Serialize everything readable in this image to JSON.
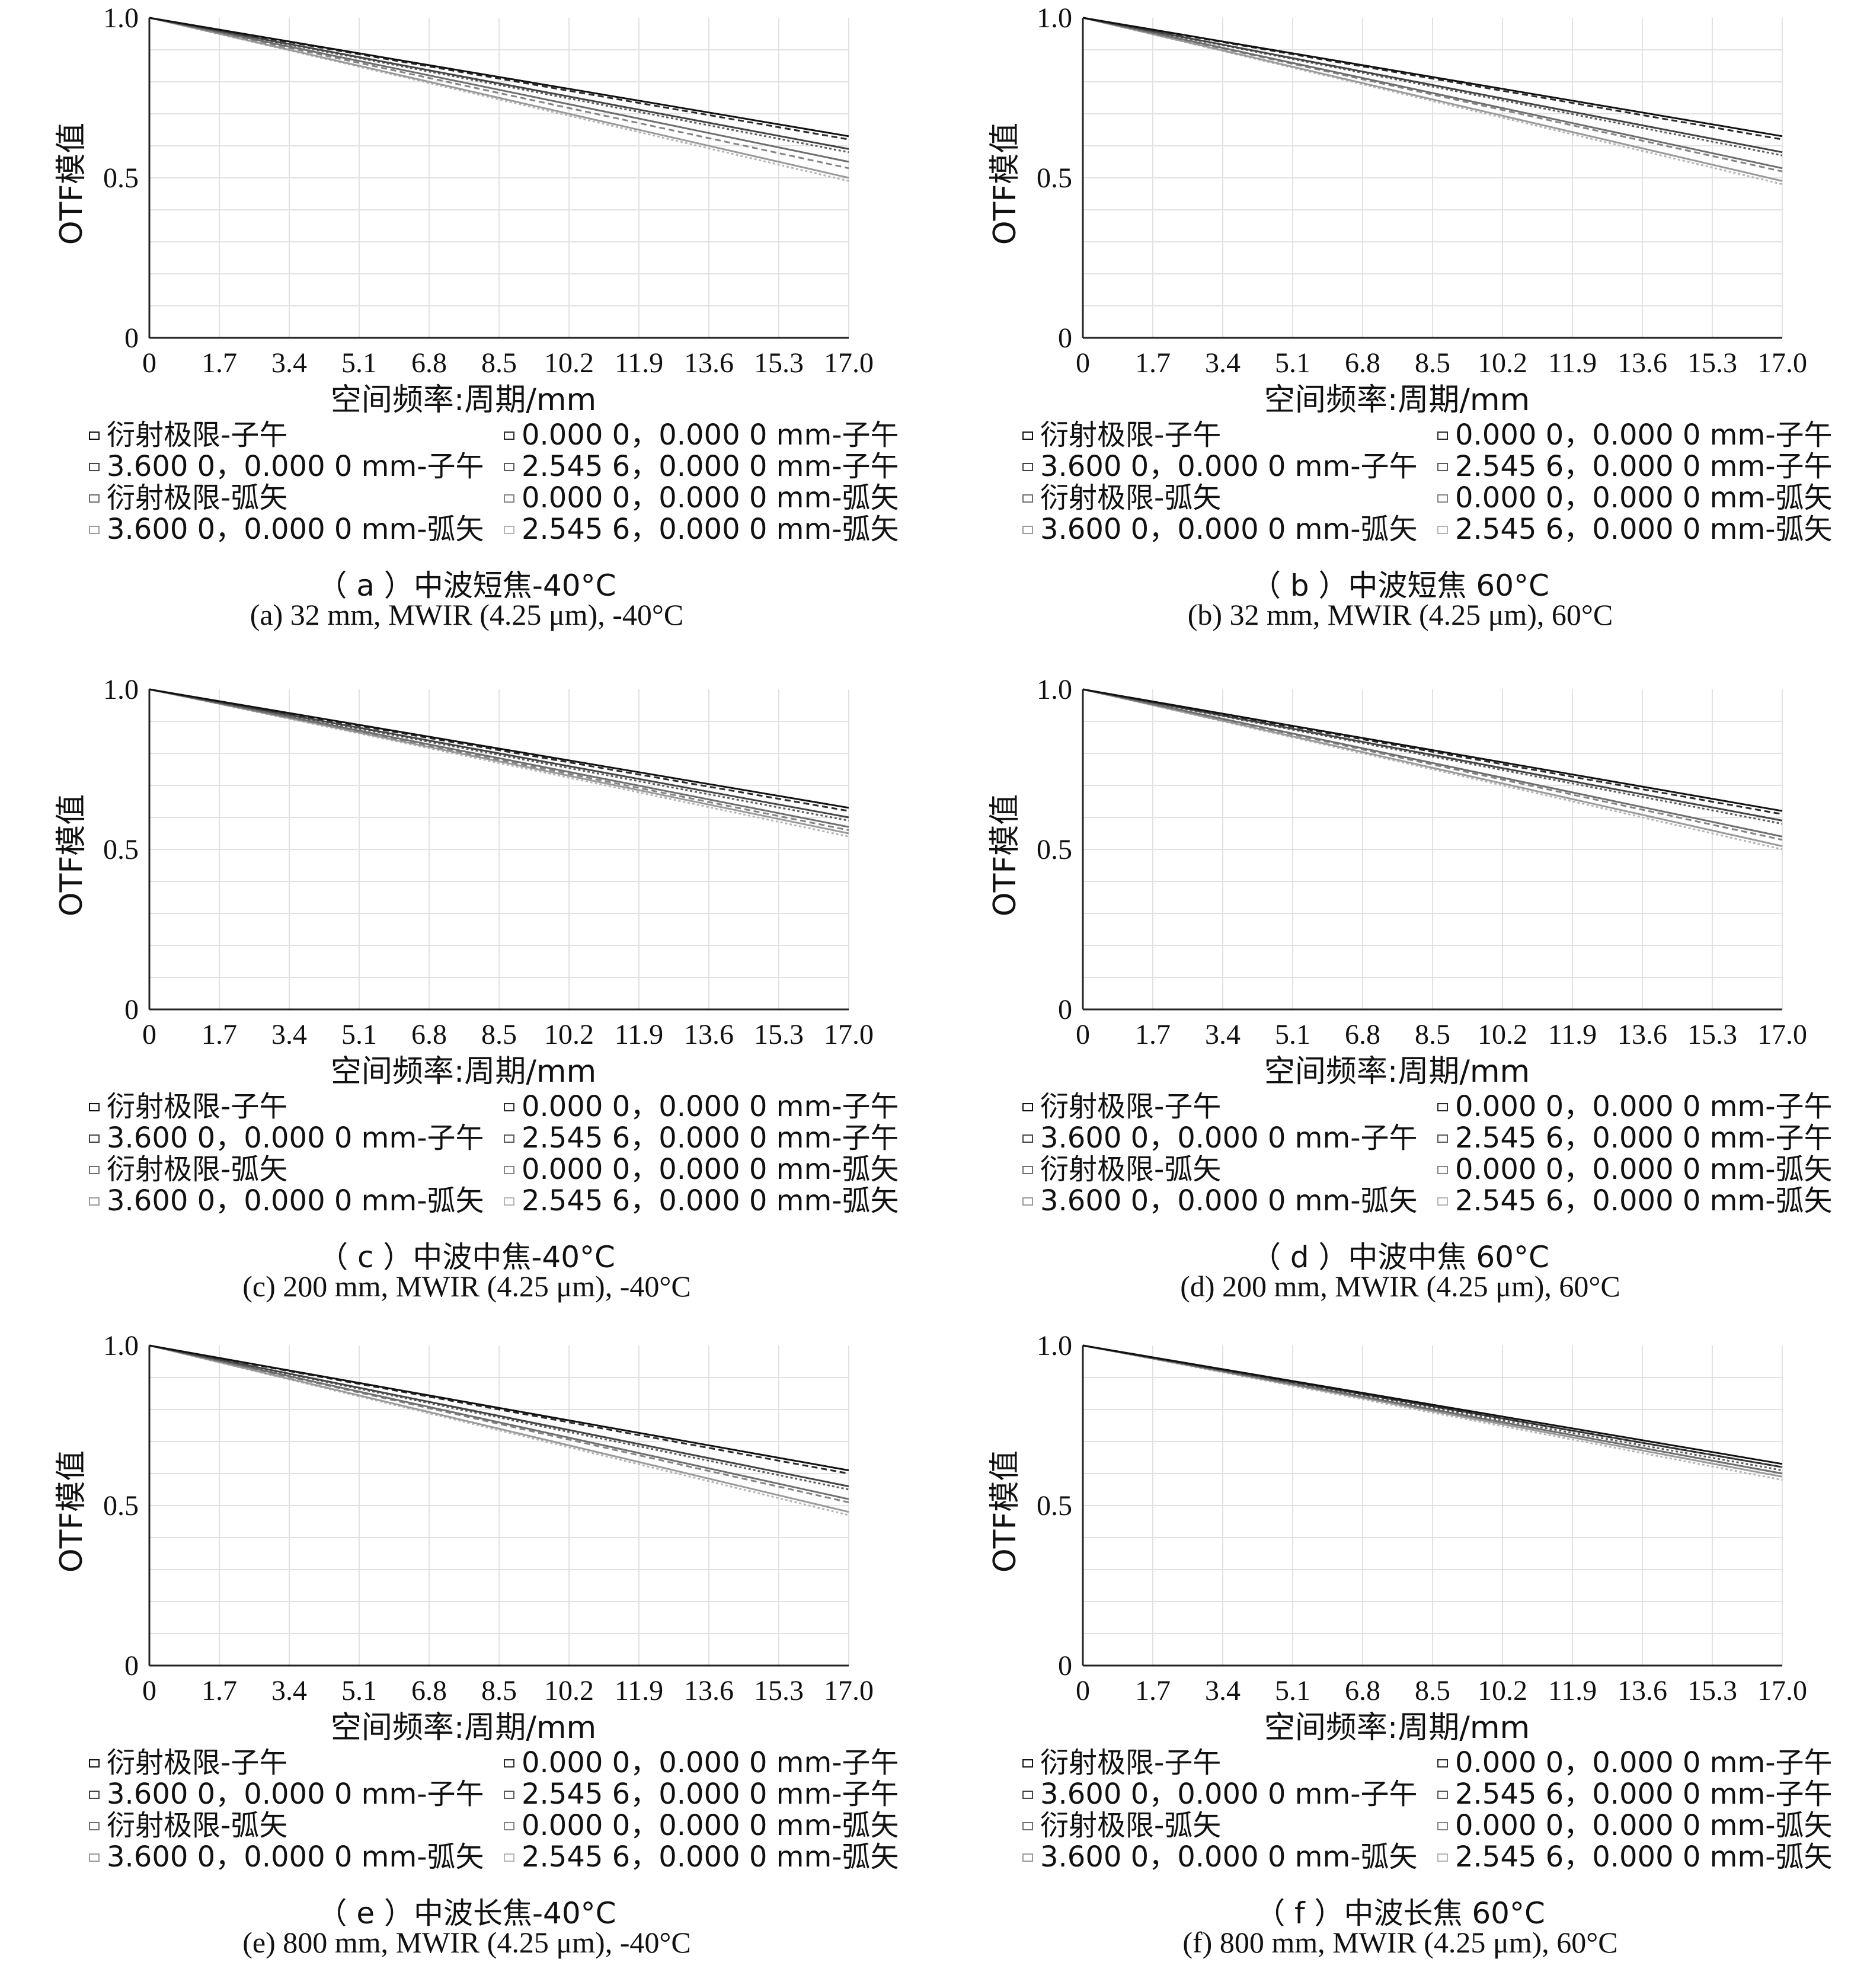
{
  "common": {
    "xlabel": "空间频率:周期/mm",
    "ylabel": "OTF模值",
    "xticks": [
      "0",
      "1.7",
      "3.4",
      "5.1",
      "6.8",
      "8.5",
      "10.2",
      "11.9",
      "13.6",
      "15.3",
      "17.0"
    ],
    "yticks": [
      "0",
      "0.5",
      "1.0"
    ],
    "legend": [
      "衍射极限-子午",
      "0.000 0，0.000 0 mm-子午",
      "3.600 0，0.000 0 mm-子午",
      "2.545 6，0.000 0 mm-子午",
      "衍射极限-弧矢",
      "0.000 0，0.000 0 mm-弧矢",
      "3.600 0，0.000 0 mm-弧矢",
      "2.545 6，0.000 0 mm-弧矢"
    ]
  },
  "panels": [
    {
      "caption_cn": "（ a ）中波短焦-40°C",
      "caption_en": "(a) 32 mm, MWIR (4.25 μm), -40°C"
    },
    {
      "caption_cn": "（ b ）中波短焦 60°C",
      "caption_en": "(b) 32 mm, MWIR (4.25 μm), 60°C"
    },
    {
      "caption_cn": "（ c ）中波中焦-40°C",
      "caption_en": "(c) 200 mm, MWIR (4.25 μm), -40°C"
    },
    {
      "caption_cn": "（ d ）中波中焦 60°C",
      "caption_en": "(d) 200 mm, MWIR (4.25 μm), 60°C"
    },
    {
      "caption_cn": "（ e ）中波长焦-40°C",
      "caption_en": "(e) 800 mm, MWIR (4.25 μm), -40°C"
    },
    {
      "caption_cn": "（ f ）中波长焦 60°C",
      "caption_en": "(f) 800 mm, MWIR (4.25 μm), 60°C"
    }
  ],
  "chart_data": [
    {
      "type": "line",
      "xlim": [
        0,
        17
      ],
      "ylim": [
        0,
        1
      ],
      "x": [
        0,
        17
      ],
      "series": [
        {
          "values": [
            1.0,
            0.63
          ]
        },
        {
          "values": [
            1.0,
            0.62
          ]
        },
        {
          "values": [
            1.0,
            0.59
          ]
        },
        {
          "values": [
            1.0,
            0.58
          ]
        },
        {
          "values": [
            1.0,
            0.55
          ]
        },
        {
          "values": [
            1.0,
            0.53
          ]
        },
        {
          "values": [
            1.0,
            0.5
          ]
        },
        {
          "values": [
            1.0,
            0.49
          ]
        }
      ]
    },
    {
      "type": "line",
      "xlim": [
        0,
        17
      ],
      "ylim": [
        0,
        1
      ],
      "x": [
        0,
        17
      ],
      "series": [
        {
          "values": [
            1.0,
            0.63
          ]
        },
        {
          "values": [
            1.0,
            0.62
          ]
        },
        {
          "values": [
            1.0,
            0.58
          ]
        },
        {
          "values": [
            1.0,
            0.57
          ]
        },
        {
          "values": [
            1.0,
            0.53
          ]
        },
        {
          "values": [
            1.0,
            0.52
          ]
        },
        {
          "values": [
            1.0,
            0.49
          ]
        },
        {
          "values": [
            1.0,
            0.48
          ]
        }
      ]
    },
    {
      "type": "line",
      "xlim": [
        0,
        17
      ],
      "ylim": [
        0,
        1
      ],
      "x": [
        0,
        17
      ],
      "series": [
        {
          "values": [
            1.0,
            0.63
          ]
        },
        {
          "values": [
            1.0,
            0.62
          ]
        },
        {
          "values": [
            1.0,
            0.6
          ]
        },
        {
          "values": [
            1.0,
            0.59
          ]
        },
        {
          "values": [
            1.0,
            0.57
          ]
        },
        {
          "values": [
            1.0,
            0.56
          ]
        },
        {
          "values": [
            1.0,
            0.55
          ]
        },
        {
          "values": [
            1.0,
            0.54
          ]
        }
      ]
    },
    {
      "type": "line",
      "xlim": [
        0,
        17
      ],
      "ylim": [
        0,
        1
      ],
      "x": [
        0,
        17
      ],
      "series": [
        {
          "values": [
            1.0,
            0.62
          ]
        },
        {
          "values": [
            1.0,
            0.61
          ]
        },
        {
          "values": [
            1.0,
            0.59
          ]
        },
        {
          "values": [
            1.0,
            0.58
          ]
        },
        {
          "values": [
            1.0,
            0.54
          ]
        },
        {
          "values": [
            1.0,
            0.53
          ]
        },
        {
          "values": [
            1.0,
            0.51
          ]
        },
        {
          "values": [
            1.0,
            0.5
          ]
        }
      ]
    },
    {
      "type": "line",
      "xlim": [
        0,
        17
      ],
      "ylim": [
        0,
        1
      ],
      "x": [
        0,
        17
      ],
      "series": [
        {
          "values": [
            1.0,
            0.61
          ]
        },
        {
          "values": [
            1.0,
            0.6
          ]
        },
        {
          "values": [
            1.0,
            0.56
          ]
        },
        {
          "values": [
            1.0,
            0.55
          ]
        },
        {
          "values": [
            1.0,
            0.52
          ]
        },
        {
          "values": [
            1.0,
            0.51
          ]
        },
        {
          "values": [
            1.0,
            0.48
          ]
        },
        {
          "values": [
            1.0,
            0.47
          ]
        }
      ]
    },
    {
      "type": "line",
      "xlim": [
        0,
        17
      ],
      "ylim": [
        0,
        1
      ],
      "x": [
        0,
        17
      ],
      "series": [
        {
          "values": [
            1.0,
            0.63
          ]
        },
        {
          "values": [
            1.0,
            0.62
          ]
        },
        {
          "values": [
            1.0,
            0.62
          ]
        },
        {
          "values": [
            1.0,
            0.61
          ]
        },
        {
          "values": [
            1.0,
            0.6
          ]
        },
        {
          "values": [
            1.0,
            0.6
          ]
        },
        {
          "values": [
            1.0,
            0.59
          ]
        },
        {
          "values": [
            1.0,
            0.58
          ]
        }
      ]
    }
  ]
}
